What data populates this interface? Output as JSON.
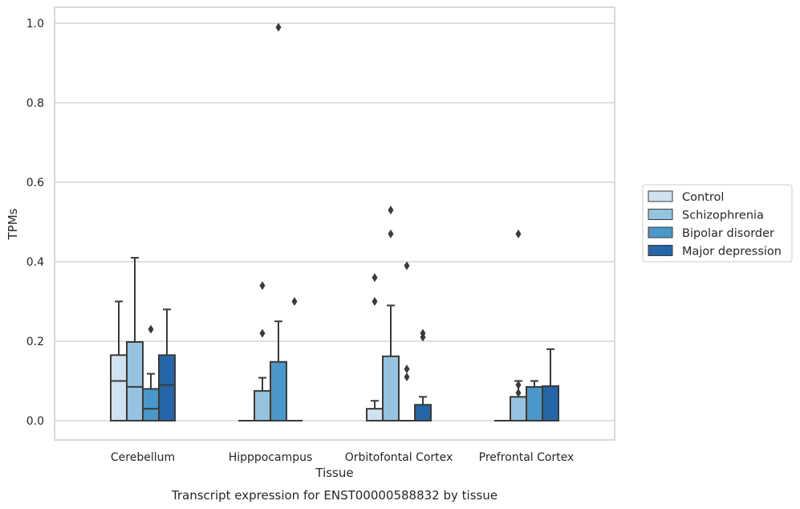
{
  "chart_data": {
    "type": "box",
    "xlabel": "Tissue",
    "ylabel": "TPMs",
    "caption": "Transcript expression for ENST00000588832 by tissue",
    "ylim": [
      -0.05,
      1.04
    ],
    "yticks": [
      0.0,
      0.2,
      0.4,
      0.6,
      0.8,
      1.0
    ],
    "ytick_labels": [
      "0.0",
      "0.2",
      "0.4",
      "0.6",
      "0.8",
      "1.0"
    ],
    "grid": true,
    "legend_position": "right",
    "categories": [
      "Cerebellum",
      "Hipppocampus",
      "Orbitofontal Cortex",
      "Prefrontal Cortex"
    ],
    "series": [
      {
        "name": "Control",
        "color": "#d0e1f2",
        "boxes": [
          {
            "min": 0.0,
            "q1": 0.0,
            "median": 0.1,
            "q3": 0.165,
            "max": 0.3,
            "outliers": []
          },
          {
            "min": 0.0,
            "q1": 0.0,
            "median": 0.0,
            "q3": 0.0,
            "max": 0.0,
            "outliers": []
          },
          {
            "min": 0.0,
            "q1": 0.0,
            "median": 0.0,
            "q3": 0.03,
            "max": 0.05,
            "outliers": [
              0.36,
              0.3
            ]
          },
          {
            "min": 0.0,
            "q1": 0.0,
            "median": 0.0,
            "q3": 0.0,
            "max": 0.0,
            "outliers": []
          }
        ]
      },
      {
        "name": "Schizophrenia",
        "color": "#94c4df",
        "boxes": [
          {
            "min": 0.0,
            "q1": 0.0,
            "median": 0.085,
            "q3": 0.198,
            "max": 0.41,
            "outliers": []
          },
          {
            "min": 0.0,
            "q1": 0.0,
            "median": 0.0,
            "q3": 0.075,
            "max": 0.108,
            "outliers": [
              0.34,
              0.22
            ]
          },
          {
            "min": 0.0,
            "q1": 0.0,
            "median": 0.0,
            "q3": 0.162,
            "max": 0.29,
            "outliers": [
              0.53,
              0.47
            ]
          },
          {
            "min": 0.0,
            "q1": 0.0,
            "median": 0.0,
            "q3": 0.06,
            "max": 0.1,
            "outliers": [
              0.47,
              0.09,
              0.07
            ]
          }
        ]
      },
      {
        "name": "Bipolar disorder",
        "color": "#4a98c9",
        "boxes": [
          {
            "min": 0.0,
            "q1": 0.0,
            "median": 0.03,
            "q3": 0.08,
            "max": 0.118,
            "outliers": [
              0.23
            ]
          },
          {
            "min": 0.0,
            "q1": 0.0,
            "median": 0.0,
            "q3": 0.148,
            "max": 0.25,
            "outliers": [
              0.99
            ]
          },
          {
            "min": 0.0,
            "q1": 0.0,
            "median": 0.0,
            "q3": 0.0,
            "max": 0.0,
            "outliers": [
              0.39,
              0.13,
              0.11
            ]
          },
          {
            "min": 0.0,
            "q1": 0.0,
            "median": 0.0,
            "q3": 0.085,
            "max": 0.1,
            "outliers": []
          }
        ]
      },
      {
        "name": "Major depression",
        "color": "#2566a8",
        "boxes": [
          {
            "min": 0.0,
            "q1": 0.0,
            "median": 0.09,
            "q3": 0.165,
            "max": 0.28,
            "outliers": []
          },
          {
            "min": 0.0,
            "q1": 0.0,
            "median": 0.0,
            "q3": 0.0,
            "max": 0.0,
            "outliers": [
              0.3
            ]
          },
          {
            "min": 0.0,
            "q1": 0.0,
            "median": 0.0,
            "q3": 0.04,
            "max": 0.06,
            "outliers": [
              0.22,
              0.21
            ]
          },
          {
            "min": 0.0,
            "q1": 0.0,
            "median": 0.0,
            "q3": 0.087,
            "max": 0.18,
            "outliers": []
          }
        ]
      }
    ]
  },
  "colors": {
    "grid": "#cccccc",
    "frame": "#cccccc",
    "box_edge": "#3a3a3a"
  }
}
